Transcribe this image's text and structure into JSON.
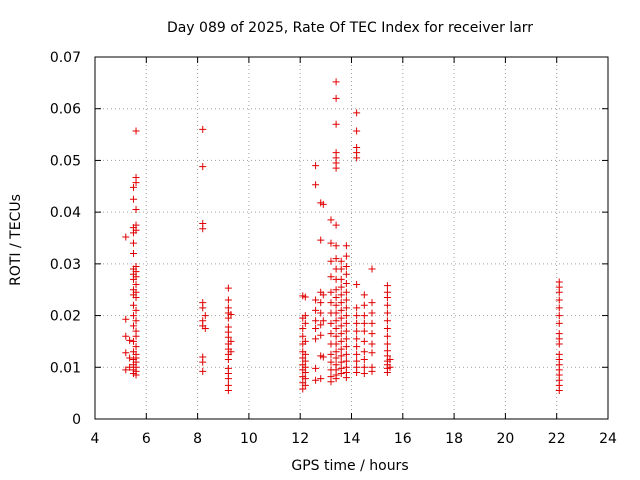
{
  "chart_data": {
    "type": "scatter",
    "title": "Day 089 of 2025, Rate Of TEC Index for receiver larr",
    "xlabel": "GPS time / hours",
    "ylabel": "ROTI / TECUs",
    "xlim": [
      4,
      24
    ],
    "ylim": [
      0,
      0.07
    ],
    "x_ticks": [
      4,
      6,
      8,
      10,
      12,
      14,
      16,
      18,
      20,
      22,
      24
    ],
    "x_tick_labels": [
      "4",
      "6",
      "8",
      "10",
      "12",
      "14",
      "16",
      "18",
      "20",
      "22",
      "24"
    ],
    "y_ticks": [
      0,
      0.01,
      0.02,
      0.03,
      0.04,
      0.05,
      0.06,
      0.07
    ],
    "y_tick_labels": [
      "0",
      "0.01",
      "0.02",
      "0.03",
      "0.04",
      "0.05",
      "0.06",
      "0.07"
    ],
    "grid": true,
    "marker": "+",
    "color": "#e00000",
    "series": [
      {
        "name": "ROTI",
        "points": [
          [
            5.2,
            0.0352
          ],
          [
            5.2,
            0.0193
          ],
          [
            5.2,
            0.016
          ],
          [
            5.2,
            0.0128
          ],
          [
            5.2,
            0.0095
          ],
          [
            5.35,
            0.0152
          ],
          [
            5.35,
            0.0118
          ],
          [
            5.35,
            0.01
          ],
          [
            5.5,
            0.0448
          ],
          [
            5.5,
            0.0425
          ],
          [
            5.5,
            0.037
          ],
          [
            5.5,
            0.036
          ],
          [
            5.5,
            0.034
          ],
          [
            5.5,
            0.032
          ],
          [
            5.5,
            0.029
          ],
          [
            5.5,
            0.028
          ],
          [
            5.5,
            0.027
          ],
          [
            5.5,
            0.025
          ],
          [
            5.5,
            0.024
          ],
          [
            5.5,
            0.022
          ],
          [
            5.5,
            0.02
          ],
          [
            5.5,
            0.018
          ],
          [
            5.5,
            0.015
          ],
          [
            5.5,
            0.013
          ],
          [
            5.5,
            0.0115
          ],
          [
            5.5,
            0.0105
          ],
          [
            5.5,
            0.0095
          ],
          [
            5.5,
            0.0088
          ],
          [
            5.6,
            0.0557
          ],
          [
            5.6,
            0.0467
          ],
          [
            5.6,
            0.0457
          ],
          [
            5.6,
            0.0405
          ],
          [
            5.6,
            0.0375
          ],
          [
            5.6,
            0.0365
          ],
          [
            5.6,
            0.0295
          ],
          [
            5.6,
            0.0285
          ],
          [
            5.6,
            0.0275
          ],
          [
            5.6,
            0.026
          ],
          [
            5.6,
            0.0245
          ],
          [
            5.6,
            0.0235
          ],
          [
            5.6,
            0.021
          ],
          [
            5.6,
            0.019
          ],
          [
            5.6,
            0.017
          ],
          [
            5.6,
            0.016
          ],
          [
            5.6,
            0.014
          ],
          [
            5.6,
            0.0125
          ],
          [
            5.6,
            0.0118
          ],
          [
            5.6,
            0.011
          ],
          [
            5.6,
            0.01
          ],
          [
            5.6,
            0.0092
          ],
          [
            5.6,
            0.0085
          ],
          [
            8.2,
            0.056
          ],
          [
            8.2,
            0.0488
          ],
          [
            8.2,
            0.0378
          ],
          [
            8.2,
            0.0368
          ],
          [
            8.2,
            0.0225
          ],
          [
            8.2,
            0.0215
          ],
          [
            8.2,
            0.019
          ],
          [
            8.2,
            0.018
          ],
          [
            8.2,
            0.012
          ],
          [
            8.2,
            0.011
          ],
          [
            8.2,
            0.0092
          ],
          [
            8.3,
            0.02
          ],
          [
            8.3,
            0.0175
          ],
          [
            9.2,
            0.0253
          ],
          [
            9.2,
            0.023
          ],
          [
            9.2,
            0.0215
          ],
          [
            9.2,
            0.0205
          ],
          [
            9.2,
            0.0195
          ],
          [
            9.2,
            0.0178
          ],
          [
            9.2,
            0.0168
          ],
          [
            9.2,
            0.0158
          ],
          [
            9.2,
            0.0145
          ],
          [
            9.2,
            0.0135
          ],
          [
            9.2,
            0.0125
          ],
          [
            9.2,
            0.0115
          ],
          [
            9.2,
            0.0098
          ],
          [
            9.2,
            0.0088
          ],
          [
            9.2,
            0.0078
          ],
          [
            9.2,
            0.0065
          ],
          [
            9.2,
            0.0055
          ],
          [
            9.3,
            0.0202
          ],
          [
            9.3,
            0.015
          ],
          [
            9.3,
            0.013
          ],
          [
            12.1,
            0.0238
          ],
          [
            12.1,
            0.0195
          ],
          [
            12.1,
            0.0175
          ],
          [
            12.1,
            0.016
          ],
          [
            12.1,
            0.0145
          ],
          [
            12.1,
            0.013
          ],
          [
            12.1,
            0.0118
          ],
          [
            12.1,
            0.0105
          ],
          [
            12.1,
            0.0095
          ],
          [
            12.1,
            0.0082
          ],
          [
            12.1,
            0.007
          ],
          [
            12.1,
            0.0058
          ],
          [
            12.2,
            0.0236
          ],
          [
            12.2,
            0.02
          ],
          [
            12.2,
            0.0185
          ],
          [
            12.2,
            0.015
          ],
          [
            12.2,
            0.0125
          ],
          [
            12.2,
            0.0112
          ],
          [
            12.2,
            0.01
          ],
          [
            12.2,
            0.009
          ],
          [
            12.2,
            0.0078
          ],
          [
            12.2,
            0.0065
          ],
          [
            12.6,
            0.049
          ],
          [
            12.6,
            0.0453
          ],
          [
            12.6,
            0.023
          ],
          [
            12.6,
            0.021
          ],
          [
            12.6,
            0.019
          ],
          [
            12.6,
            0.0175
          ],
          [
            12.6,
            0.0155
          ],
          [
            12.6,
            0.0098
          ],
          [
            12.6,
            0.0075
          ],
          [
            12.8,
            0.0418
          ],
          [
            12.8,
            0.0346
          ],
          [
            12.8,
            0.0245
          ],
          [
            12.8,
            0.0225
          ],
          [
            12.8,
            0.0205
          ],
          [
            12.8,
            0.0182
          ],
          [
            12.8,
            0.0162
          ],
          [
            12.8,
            0.0122
          ],
          [
            12.8,
            0.0078
          ],
          [
            12.9,
            0.0415
          ],
          [
            12.9,
            0.024
          ],
          [
            12.9,
            0.019
          ],
          [
            12.9,
            0.012
          ],
          [
            13.2,
            0.0385
          ],
          [
            13.2,
            0.034
          ],
          [
            13.2,
            0.0305
          ],
          [
            13.2,
            0.0275
          ],
          [
            13.2,
            0.0245
          ],
          [
            13.2,
            0.0225
          ],
          [
            13.2,
            0.0205
          ],
          [
            13.2,
            0.0185
          ],
          [
            13.2,
            0.0165
          ],
          [
            13.2,
            0.0145
          ],
          [
            13.2,
            0.0125
          ],
          [
            13.2,
            0.011
          ],
          [
            13.2,
            0.0095
          ],
          [
            13.2,
            0.0082
          ],
          [
            13.2,
            0.0072
          ],
          [
            13.4,
            0.0652
          ],
          [
            13.4,
            0.062
          ],
          [
            13.4,
            0.057
          ],
          [
            13.4,
            0.0515
          ],
          [
            13.4,
            0.0505
          ],
          [
            13.4,
            0.0495
          ],
          [
            13.4,
            0.0485
          ],
          [
            13.4,
            0.0375
          ],
          [
            13.4,
            0.0335
          ],
          [
            13.4,
            0.031
          ],
          [
            13.4,
            0.029
          ],
          [
            13.4,
            0.027
          ],
          [
            13.4,
            0.025
          ],
          [
            13.4,
            0.0235
          ],
          [
            13.4,
            0.022
          ],
          [
            13.4,
            0.0205
          ],
          [
            13.4,
            0.019
          ],
          [
            13.4,
            0.0175
          ],
          [
            13.4,
            0.016
          ],
          [
            13.4,
            0.0145
          ],
          [
            13.4,
            0.013
          ],
          [
            13.4,
            0.0118
          ],
          [
            13.4,
            0.0105
          ],
          [
            13.4,
            0.0095
          ],
          [
            13.4,
            0.0085
          ],
          [
            13.4,
            0.0078
          ],
          [
            13.6,
            0.0305
          ],
          [
            13.6,
            0.029
          ],
          [
            13.6,
            0.027
          ],
          [
            13.6,
            0.0255
          ],
          [
            13.6,
            0.024
          ],
          [
            13.6,
            0.0225
          ],
          [
            13.6,
            0.021
          ],
          [
            13.6,
            0.0195
          ],
          [
            13.6,
            0.018
          ],
          [
            13.6,
            0.0165
          ],
          [
            13.6,
            0.015
          ],
          [
            13.6,
            0.0135
          ],
          [
            13.6,
            0.0122
          ],
          [
            13.6,
            0.011
          ],
          [
            13.6,
            0.0098
          ],
          [
            13.6,
            0.0088
          ],
          [
            13.8,
            0.0335
          ],
          [
            13.8,
            0.0315
          ],
          [
            13.8,
            0.0295
          ],
          [
            13.8,
            0.028
          ],
          [
            13.8,
            0.0262
          ],
          [
            13.8,
            0.0245
          ],
          [
            13.8,
            0.023
          ],
          [
            13.8,
            0.0215
          ],
          [
            13.8,
            0.02
          ],
          [
            13.8,
            0.0185
          ],
          [
            13.8,
            0.017
          ],
          [
            13.8,
            0.0155
          ],
          [
            13.8,
            0.014
          ],
          [
            13.8,
            0.0125
          ],
          [
            13.8,
            0.0112
          ],
          [
            13.8,
            0.01
          ],
          [
            13.8,
            0.009
          ],
          [
            13.8,
            0.008
          ],
          [
            14.2,
            0.0592
          ],
          [
            14.2,
            0.0557
          ],
          [
            14.2,
            0.0525
          ],
          [
            14.2,
            0.0515
          ],
          [
            14.2,
            0.0505
          ],
          [
            14.2,
            0.026
          ],
          [
            14.2,
            0.0215
          ],
          [
            14.2,
            0.02
          ],
          [
            14.2,
            0.0185
          ],
          [
            14.2,
            0.017
          ],
          [
            14.2,
            0.0155
          ],
          [
            14.2,
            0.014
          ],
          [
            14.2,
            0.0125
          ],
          [
            14.2,
            0.0112
          ],
          [
            14.2,
            0.01
          ],
          [
            14.2,
            0.009
          ],
          [
            14.5,
            0.024
          ],
          [
            14.5,
            0.022
          ],
          [
            14.5,
            0.02
          ],
          [
            14.5,
            0.0185
          ],
          [
            14.5,
            0.017
          ],
          [
            14.5,
            0.015
          ],
          [
            14.5,
            0.013
          ],
          [
            14.5,
            0.0115
          ],
          [
            14.5,
            0.01
          ],
          [
            14.5,
            0.0088
          ],
          [
            14.8,
            0.029
          ],
          [
            14.8,
            0.0225
          ],
          [
            14.8,
            0.0205
          ],
          [
            14.8,
            0.0185
          ],
          [
            14.8,
            0.0165
          ],
          [
            14.8,
            0.0145
          ],
          [
            14.8,
            0.0128
          ],
          [
            14.8,
            0.01
          ],
          [
            14.8,
            0.0092
          ],
          [
            15.4,
            0.0258
          ],
          [
            15.4,
            0.0245
          ],
          [
            15.4,
            0.0235
          ],
          [
            15.4,
            0.022
          ],
          [
            15.4,
            0.0205
          ],
          [
            15.4,
            0.019
          ],
          [
            15.4,
            0.0175
          ],
          [
            15.4,
            0.016
          ],
          [
            15.4,
            0.0145
          ],
          [
            15.4,
            0.0132
          ],
          [
            15.4,
            0.0122
          ],
          [
            15.4,
            0.0112
          ],
          [
            15.4,
            0.0105
          ],
          [
            15.4,
            0.0098
          ],
          [
            15.4,
            0.009
          ],
          [
            15.5,
            0.0115
          ],
          [
            15.5,
            0.01
          ],
          [
            22.1,
            0.0265
          ],
          [
            22.1,
            0.0255
          ],
          [
            22.1,
            0.0245
          ],
          [
            22.1,
            0.023
          ],
          [
            22.1,
            0.0215
          ],
          [
            22.1,
            0.02
          ],
          [
            22.1,
            0.0185
          ],
          [
            22.1,
            0.0165
          ],
          [
            22.1,
            0.0155
          ],
          [
            22.1,
            0.0145
          ],
          [
            22.1,
            0.0125
          ],
          [
            22.1,
            0.0115
          ],
          [
            22.1,
            0.0105
          ],
          [
            22.1,
            0.0095
          ],
          [
            22.1,
            0.0085
          ],
          [
            22.1,
            0.0075
          ],
          [
            22.1,
            0.0065
          ],
          [
            22.1,
            0.0055
          ]
        ]
      }
    ]
  }
}
